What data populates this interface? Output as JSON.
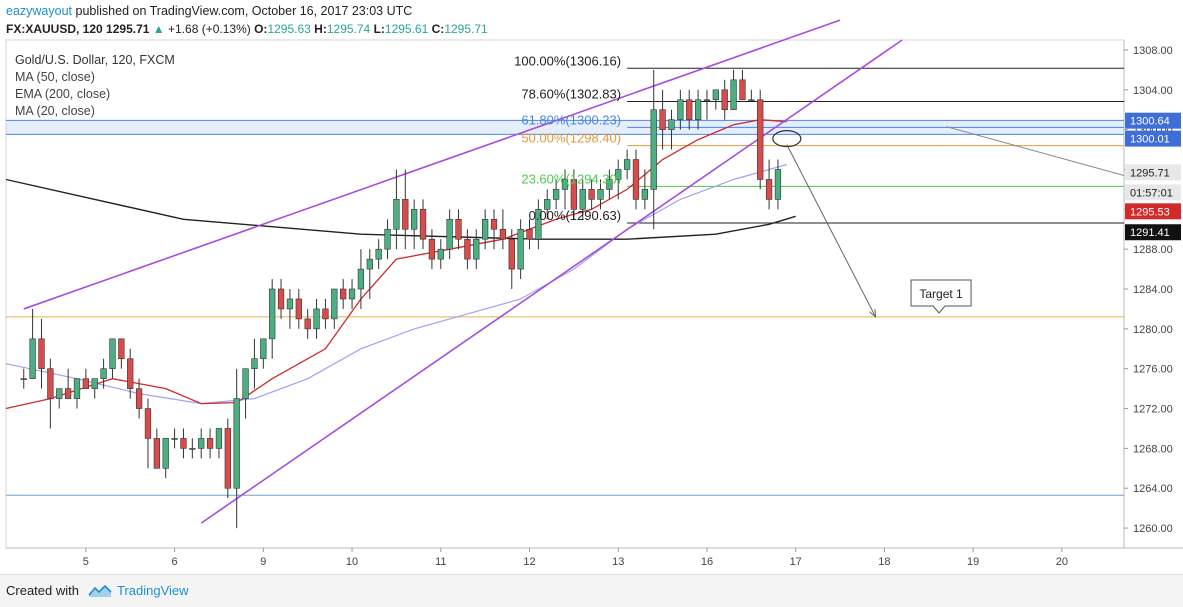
{
  "header": {
    "author": "eazywayout",
    "published": "published on TradingView.com, October 16, 2017 23:03 UTC"
  },
  "symbol_bar": {
    "symbol": "FX:XAUUSD, 120",
    "price": "1295.71",
    "change_arrow": "▲",
    "change": "+1.68 (+0.13%)",
    "o_label": "O:",
    "o": "1295.63",
    "h_label": "H:",
    "h": "1295.74",
    "l_label": "L:",
    "l": "1295.61",
    "c_label": "C:",
    "c": "1295.71"
  },
  "legend": {
    "title": "Gold/U.S. Dollar, 120, FXCM",
    "items": [
      "MA (50, close)",
      "EMA (200, close)",
      "MA (20, close)"
    ]
  },
  "footer": {
    "created_with": "Created with",
    "brand": "TradingView"
  },
  "colors": {
    "up": "#4caf82",
    "down": "#d84c4c",
    "ma50": "#a2a2f2",
    "ema200": "#222222",
    "ma20": "#d22a2a",
    "channel": "#a64de0",
    "fib_black": "#222222",
    "fib_blue": "#4a86e8",
    "fib_orange": "#e39a3b",
    "fib_green": "#4ec94e",
    "support_orange": "#e8b04a",
    "support_blue": "#6aa2d8"
  },
  "chart_data": {
    "type": "candlestick",
    "title": "Gold/U.S. Dollar, 120, FXCM",
    "ylim": [
      1258,
      1309
    ],
    "y_ticks": [
      "1260.00",
      "1264.00",
      "1268.00",
      "1272.00",
      "1276.00",
      "1280.00",
      "1284.00",
      "1288.00",
      "1292.00",
      "1296.00",
      "1300.00",
      "1304.00",
      "1308.00"
    ],
    "y_tick_values": [
      1260,
      1264,
      1268,
      1272,
      1276,
      1280,
      1284,
      1288,
      1292,
      1296,
      1300,
      1304,
      1308
    ],
    "x_ticks": [
      "5",
      "6",
      "9",
      "10",
      "11",
      "12",
      "13",
      "16",
      "17",
      "18",
      "19",
      "20"
    ],
    "x_tick_index": [
      9,
      19,
      29,
      39,
      49,
      59,
      69,
      79,
      89,
      99,
      109,
      119
    ],
    "x_range": [
      0,
      126
    ],
    "candles": [
      [
        1275,
        1276,
        1274,
        1275
      ],
      [
        1275,
        1282,
        1275,
        1279
      ],
      [
        1279,
        1281,
        1274,
        1276
      ],
      [
        1276,
        1277,
        1270,
        1273
      ],
      [
        1273,
        1274,
        1272,
        1274
      ],
      [
        1274,
        1276,
        1273,
        1273
      ],
      [
        1273,
        1275,
        1272,
        1275
      ],
      [
        1275,
        1276,
        1274,
        1274
      ],
      [
        1274,
        1275,
        1273,
        1275
      ],
      [
        1275,
        1277,
        1274,
        1276
      ],
      [
        1276,
        1279,
        1275,
        1279
      ],
      [
        1279,
        1279,
        1276,
        1277
      ],
      [
        1277,
        1278,
        1273,
        1274
      ],
      [
        1274,
        1275,
        1271,
        1272
      ],
      [
        1272,
        1273,
        1266,
        1269
      ],
      [
        1269,
        1270,
        1266,
        1266
      ],
      [
        1266,
        1269,
        1265,
        1269
      ],
      [
        1269,
        1270,
        1268,
        1269
      ],
      [
        1269,
        1270,
        1267,
        1268
      ],
      [
        1268,
        1269,
        1267,
        1268
      ],
      [
        1268,
        1270,
        1267,
        1269
      ],
      [
        1269,
        1270,
        1267,
        1268
      ],
      [
        1268,
        1270,
        1267,
        1270
      ],
      [
        1270,
        1271,
        1263,
        1264
      ],
      [
        1264,
        1276,
        1260,
        1273
      ],
      [
        1273,
        1276,
        1271,
        1276
      ],
      [
        1276,
        1279,
        1274,
        1277
      ],
      [
        1277,
        1279,
        1276,
        1279
      ],
      [
        1279,
        1285,
        1277,
        1284
      ],
      [
        1284,
        1285,
        1281,
        1282
      ],
      [
        1282,
        1284,
        1280,
        1283
      ],
      [
        1283,
        1284,
        1280,
        1281
      ],
      [
        1281,
        1282,
        1279,
        1280
      ],
      [
        1280,
        1283,
        1279,
        1282
      ],
      [
        1282,
        1283,
        1280,
        1281
      ],
      [
        1281,
        1284,
        1280,
        1284
      ],
      [
        1284,
        1285,
        1282,
        1283
      ],
      [
        1283,
        1285,
        1282,
        1284
      ],
      [
        1284,
        1288,
        1282,
        1286
      ],
      [
        1286,
        1288,
        1283,
        1287
      ],
      [
        1287,
        1289,
        1286,
        1288
      ],
      [
        1288,
        1291,
        1287,
        1290
      ],
      [
        1290,
        1296,
        1288,
        1293
      ],
      [
        1293,
        1296,
        1288,
        1290
      ],
      [
        1290,
        1293,
        1288,
        1292
      ],
      [
        1292,
        1293,
        1288,
        1289
      ],
      [
        1289,
        1290,
        1286,
        1287
      ],
      [
        1287,
        1289,
        1286,
        1288
      ],
      [
        1288,
        1292,
        1287,
        1291
      ],
      [
        1291,
        1292,
        1288,
        1289
      ],
      [
        1289,
        1290,
        1286,
        1287
      ],
      [
        1287,
        1290,
        1286,
        1289
      ],
      [
        1289,
        1292,
        1288,
        1291
      ],
      [
        1291,
        1292,
        1288,
        1290
      ],
      [
        1290,
        1292,
        1288,
        1289
      ],
      [
        1289,
        1290,
        1284,
        1286
      ],
      [
        1286,
        1291,
        1285,
        1290
      ],
      [
        1290,
        1291,
        1288,
        1289
      ],
      [
        1289,
        1293,
        1288,
        1292
      ],
      [
        1292,
        1294,
        1291,
        1293
      ],
      [
        1293,
        1295,
        1292,
        1294
      ],
      [
        1294,
        1296,
        1292,
        1295
      ],
      [
        1295,
        1296,
        1291,
        1292
      ],
      [
        1292,
        1295,
        1291,
        1294
      ],
      [
        1294,
        1295,
        1292,
        1293
      ],
      [
        1293,
        1295,
        1292,
        1294
      ],
      [
        1294,
        1296,
        1293,
        1295
      ],
      [
        1295,
        1297,
        1293,
        1296
      ],
      [
        1296,
        1298,
        1295,
        1297
      ],
      [
        1297,
        1298,
        1292,
        1293
      ],
      [
        1293,
        1296,
        1292,
        1294
      ],
      [
        1294,
        1306,
        1290,
        1302
      ],
      [
        1302,
        1304,
        1298,
        1300
      ],
      [
        1300,
        1302,
        1298,
        1301
      ],
      [
        1301,
        1304,
        1300,
        1303
      ],
      [
        1303,
        1304,
        1300,
        1301
      ],
      [
        1301,
        1304,
        1300,
        1303
      ],
      [
        1303,
        1304,
        1301,
        1303
      ],
      [
        1303,
        1304,
        1302,
        1304
      ],
      [
        1304,
        1305,
        1301,
        1302
      ],
      [
        1302,
        1306,
        1302,
        1305
      ],
      [
        1305,
        1306,
        1303,
        1303
      ],
      [
        1303,
        1304,
        1303,
        1303
      ],
      [
        1303,
        1304,
        1294,
        1295
      ],
      [
        1295,
        1297,
        1292,
        1293
      ],
      [
        1293,
        1297,
        1292,
        1296
      ]
    ],
    "candle_x_offset": 2,
    "ma_labels": [
      "MA (50, close)",
      "EMA (200, close)",
      "MA (20, close)"
    ],
    "ema200": [
      [
        0,
        1295
      ],
      [
        20,
        1291
      ],
      [
        40,
        1289.5
      ],
      [
        60,
        1289
      ],
      [
        70,
        1289
      ],
      [
        80,
        1289.5
      ],
      [
        86,
        1290.5
      ],
      [
        89,
        1291.3
      ]
    ],
    "ma50": [
      [
        0,
        1276.5
      ],
      [
        8,
        1275
      ],
      [
        15,
        1273.5
      ],
      [
        22,
        1272.5
      ],
      [
        28,
        1273
      ],
      [
        34,
        1275
      ],
      [
        40,
        1278
      ],
      [
        46,
        1280
      ],
      [
        52,
        1281.5
      ],
      [
        58,
        1283
      ],
      [
        64,
        1286
      ],
      [
        70,
        1290
      ],
      [
        76,
        1293
      ],
      [
        82,
        1295
      ],
      [
        88,
        1296.5
      ]
    ],
    "ma20": [
      [
        0,
        1272
      ],
      [
        5,
        1273
      ],
      [
        12,
        1275
      ],
      [
        18,
        1274
      ],
      [
        22,
        1272.5
      ],
      [
        26,
        1272.6
      ],
      [
        30,
        1275
      ],
      [
        36,
        1278
      ],
      [
        40,
        1283
      ],
      [
        44,
        1287
      ],
      [
        50,
        1288
      ],
      [
        56,
        1289
      ],
      [
        62,
        1291
      ],
      [
        66,
        1292
      ],
      [
        70,
        1294
      ],
      [
        74,
        1297
      ],
      [
        78,
        1299
      ],
      [
        82,
        1300.5
      ],
      [
        85,
        1301
      ],
      [
        88,
        1300.8
      ]
    ],
    "channel_upper": [
      [
        2,
        1282
      ],
      [
        94,
        1311
      ]
    ],
    "channel_lower": [
      [
        22,
        1260.5
      ],
      [
        101,
        1309
      ]
    ],
    "fib_levels": [
      {
        "label": "100.00%(1306.16)",
        "value": 1306.16,
        "color": "#222222"
      },
      {
        "label": "78.60%(1302.83)",
        "value": 1302.83,
        "color": "#222222"
      },
      {
        "label": "61.80%(1300.23)",
        "value": 1300.23,
        "color": "#4a86e8"
      },
      {
        "label": "50.00%(1298.40)",
        "value": 1298.4,
        "color": "#e39a3b"
      },
      {
        "label": "23.60%(1294.30)",
        "value": 1294.3,
        "color": "#4ec94e"
      },
      {
        "label": "0.00%(1290.63)",
        "value": 1290.63,
        "color": "#222222"
      }
    ],
    "fib_x_start": 70,
    "support_levels": [
      {
        "value": 1281.2,
        "color": "#e8b04a"
      },
      {
        "value": 1263.3,
        "color": "#6aa2d8"
      }
    ],
    "price_tags": [
      {
        "label": "1300.64",
        "value": 1300.9,
        "bg": "#3f6fd6",
        "fg": "#ffffff"
      },
      {
        "label": "1300.01",
        "value": 1299.1,
        "bg": "#3f6fd6",
        "fg": "#ffffff"
      },
      {
        "label": "1295.71",
        "value": 1295.71,
        "bg": "#e8e8e8",
        "fg": "#222222"
      },
      {
        "label": "01:57:01",
        "value": 1293.7,
        "bg": "#e8e8e8",
        "fg": "#222222"
      },
      {
        "label": "1295.53",
        "value": 1291.8,
        "bg": "#d22a2a",
        "fg": "#ffffff"
      },
      {
        "label": "1291.41",
        "value": 1289.7,
        "bg": "#111111",
        "fg": "#ffffff"
      }
    ],
    "annotations": {
      "target_label": "Target 1",
      "target_value": 1283.5,
      "target_x": 102,
      "arrow_from": [
        88,
        1298.5
      ],
      "arrow_to": [
        98,
        1281.2
      ],
      "ellipse_center": [
        88,
        1299.1
      ],
      "trend_from": [
        106,
        1300.3
      ],
      "trend_to": [
        126,
        1295.4
      ]
    }
  }
}
